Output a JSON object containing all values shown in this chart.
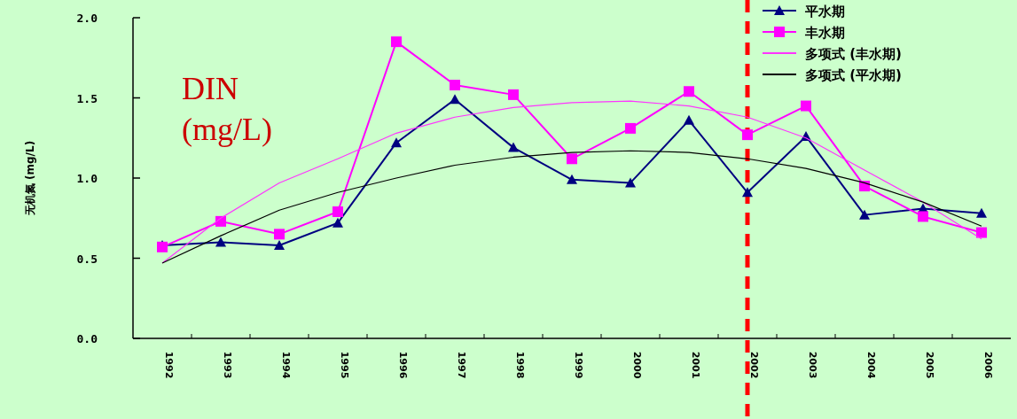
{
  "chart_data": {
    "type": "line",
    "categories": [
      "1992",
      "1993",
      "1994",
      "1995",
      "1996",
      "1997",
      "1998",
      "1999",
      "2000",
      "2001",
      "2002",
      "2003",
      "2004",
      "2005",
      "2006"
    ],
    "ylabel": "无机氮 (mg/L)",
    "ylim": [
      0,
      2.0
    ],
    "yticks": [
      {
        "value": 0,
        "label": "0.0"
      },
      {
        "value": 0.5,
        "label": "0.5"
      },
      {
        "value": 1.0,
        "label": "1.0"
      },
      {
        "value": 1.5,
        "label": "1.5"
      },
      {
        "value": 2.0,
        "label": "2.0"
      }
    ],
    "series": [
      {
        "name": "平水期",
        "color": "#000080",
        "marker": "triangle",
        "values": [
          0.58,
          0.6,
          0.58,
          0.72,
          1.22,
          1.49,
          1.19,
          0.99,
          0.97,
          1.36,
          0.91,
          1.26,
          0.77,
          0.81,
          0.78
        ]
      },
      {
        "name": "丰水期",
        "color": "#ff00ff",
        "marker": "square",
        "values": [
          0.57,
          0.73,
          0.65,
          0.79,
          1.85,
          1.58,
          1.52,
          1.12,
          1.31,
          1.54,
          1.27,
          1.45,
          0.95,
          0.76,
          0.66
        ]
      },
      {
        "name": "多项式 (丰水期)",
        "color": "#ff33ff",
        "marker": "none",
        "values": [
          0.47,
          0.75,
          0.97,
          1.12,
          1.28,
          1.38,
          1.44,
          1.47,
          1.48,
          1.45,
          1.38,
          1.25,
          1.05,
          0.85,
          0.62
        ]
      },
      {
        "name": "多项式 (平水期)",
        "color": "#000000",
        "marker": "none",
        "values": [
          0.47,
          0.64,
          0.8,
          0.91,
          1.0,
          1.08,
          1.13,
          1.16,
          1.17,
          1.16,
          1.12,
          1.06,
          0.97,
          0.85,
          0.7
        ]
      }
    ],
    "ref_lines": [
      {
        "axis": "x",
        "value": "2002",
        "color": "#ff0000",
        "line_style": "dashed"
      }
    ],
    "annotations": [
      "DIN\n(mg/L)"
    ],
    "legend": "top right",
    "grid": false,
    "line_style": "solid"
  }
}
